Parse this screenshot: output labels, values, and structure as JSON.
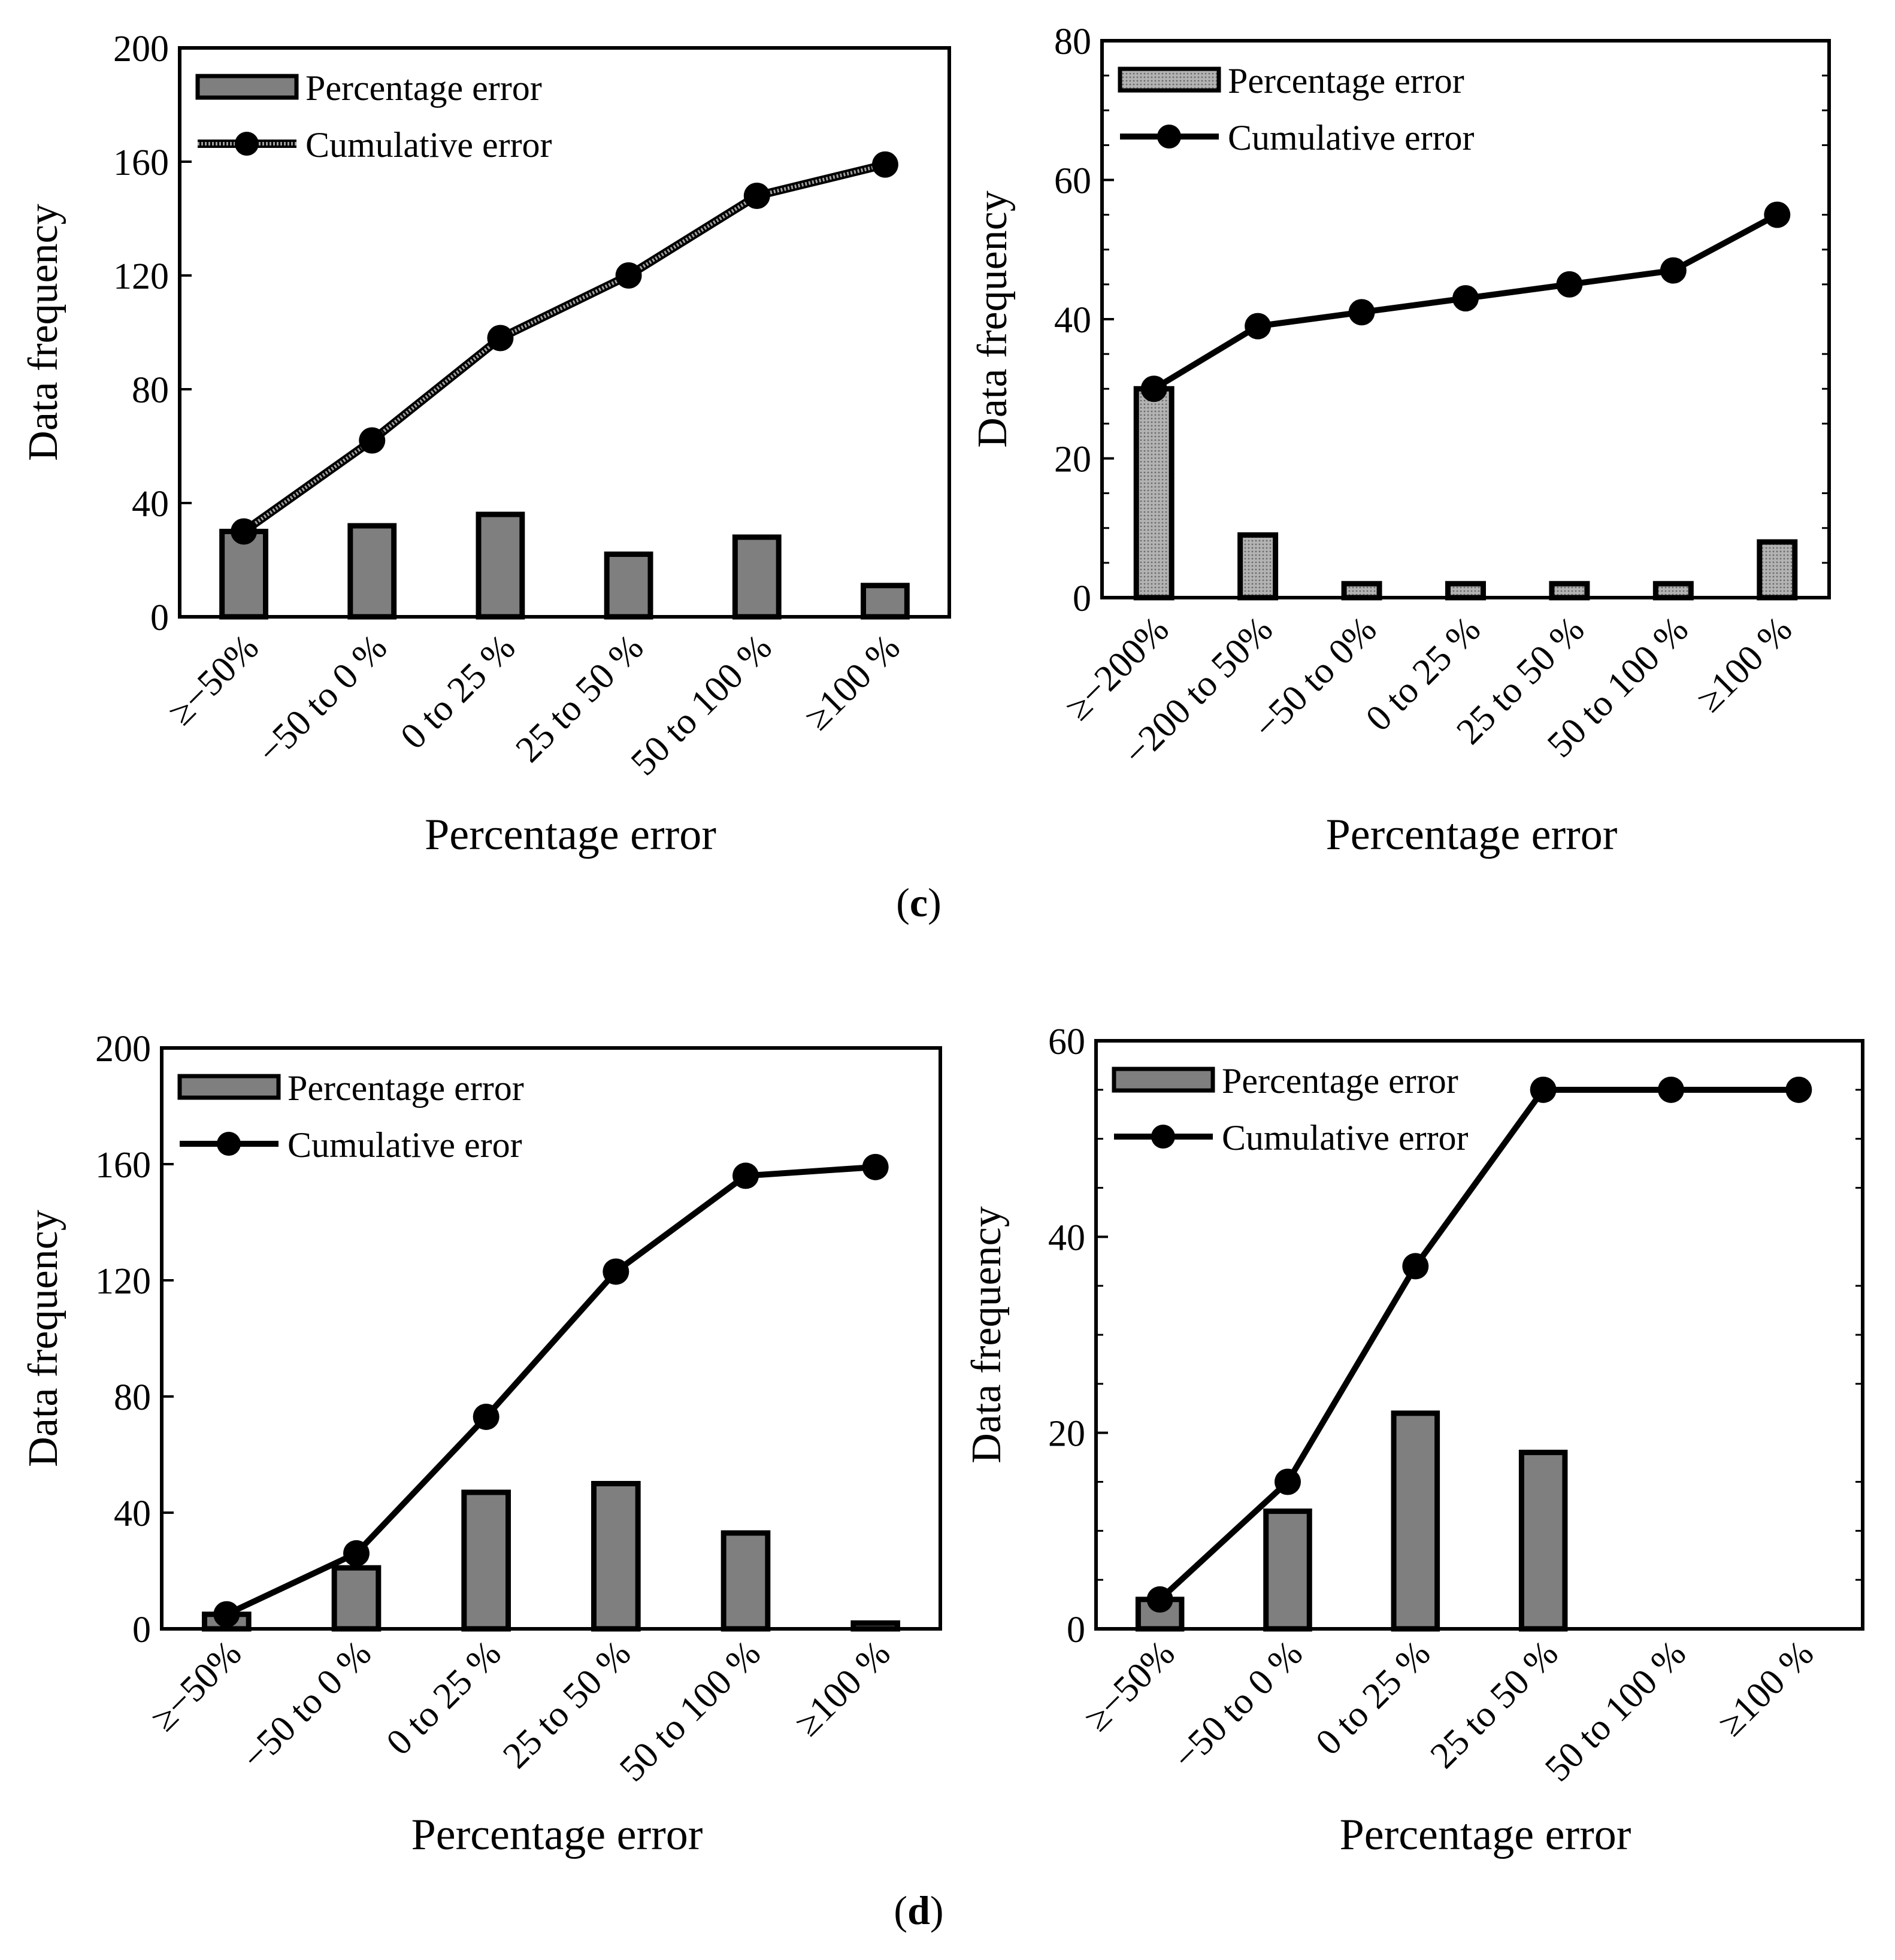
{
  "captions": {
    "top": "c",
    "bottom": "d"
  },
  "colors": {
    "bar": "#7f7f7f",
    "bar_dotted": "#a6a6a6",
    "stroke": "#000000",
    "line": "#000000",
    "line_dotted": "#8c8c8c"
  },
  "chart_data": [
    {
      "type": "bar",
      "title": "",
      "xlabel": "Percentage error",
      "ylabel": "Data frequency",
      "ylim": [
        0,
        200
      ],
      "yticks": [
        0,
        40,
        80,
        120,
        160,
        200
      ],
      "minor_ticks": false,
      "bar_style": "solid",
      "line_style": "dotted",
      "legend": {
        "position": "top-left",
        "entries": [
          "Percentage error",
          "Cumulative error"
        ]
      },
      "categories": [
        "≥−50%",
        "−50 to 0 %",
        "0 to 25 %",
        "25 to 50 %",
        "50 to 100 %",
        "≥100 %"
      ],
      "series": [
        {
          "name": "Percentage error",
          "type": "bar",
          "values": [
            30,
            32,
            36,
            22,
            28,
            11
          ]
        },
        {
          "name": "Cumulative error",
          "type": "line",
          "values": [
            30,
            62,
            98,
            120,
            148,
            159
          ]
        }
      ]
    },
    {
      "type": "bar",
      "title": "",
      "xlabel": "Percentage error",
      "ylabel": "Data frequency",
      "ylim": [
        0,
        80
      ],
      "yticks": [
        0,
        20,
        40,
        60,
        80
      ],
      "minor_ticks": true,
      "bar_style": "dotted",
      "line_style": "solid",
      "legend": {
        "position": "top-left",
        "entries": [
          "Percentage error",
          "Cumulative error"
        ]
      },
      "categories": [
        "≥−200%",
        "−200 to 50%",
        "−50 to 0%",
        "0 to 25 %",
        "25 to 50 %",
        "50 to 100 %",
        "≥100 %"
      ],
      "series": [
        {
          "name": "Percentage error",
          "type": "bar",
          "values": [
            30,
            9,
            2,
            2,
            2,
            2,
            8
          ]
        },
        {
          "name": "Cumulative error",
          "type": "line",
          "values": [
            30,
            39,
            41,
            43,
            45,
            47,
            55
          ]
        }
      ]
    },
    {
      "type": "bar",
      "title": "",
      "xlabel": "Percentage error",
      "ylabel": "Data frequency",
      "ylim": [
        0,
        200
      ],
      "yticks": [
        0,
        40,
        80,
        120,
        160,
        200
      ],
      "minor_ticks": false,
      "bar_style": "solid",
      "line_style": "solid",
      "legend": {
        "position": "top-left",
        "entries": [
          "Percentage error",
          "Cumulative eror"
        ]
      },
      "categories": [
        "≥−50%",
        "−50 to 0 %",
        "0 to 25 %",
        "25 to 50 %",
        "50 to 100 %",
        "≥100 %"
      ],
      "series": [
        {
          "name": "Percentage error",
          "type": "bar",
          "values": [
            5,
            21,
            47,
            50,
            33,
            2
          ]
        },
        {
          "name": "Cumulative eror",
          "type": "line",
          "values": [
            5,
            26,
            73,
            123,
            156,
            159
          ]
        }
      ]
    },
    {
      "type": "bar",
      "title": "",
      "xlabel": "Percentage error",
      "ylabel": "Data frequency",
      "ylim": [
        0,
        60
      ],
      "yticks": [
        0,
        20,
        40,
        60
      ],
      "minor_ticks": true,
      "bar_style": "solid",
      "line_style": "solid",
      "legend": {
        "position": "top-left",
        "entries": [
          "Percentage error",
          "Cumulative error"
        ]
      },
      "categories": [
        "≥−50%",
        "−50 to 0 %",
        "0 to 25 %",
        "25 to 50 %",
        "50 to 100 %",
        "≥100 %"
      ],
      "series": [
        {
          "name": "Percentage error",
          "type": "bar",
          "values": [
            3,
            12,
            22,
            18,
            0,
            0
          ]
        },
        {
          "name": "Cumulative error",
          "type": "line",
          "values": [
            3,
            15,
            37,
            55,
            55,
            55
          ]
        }
      ]
    }
  ]
}
